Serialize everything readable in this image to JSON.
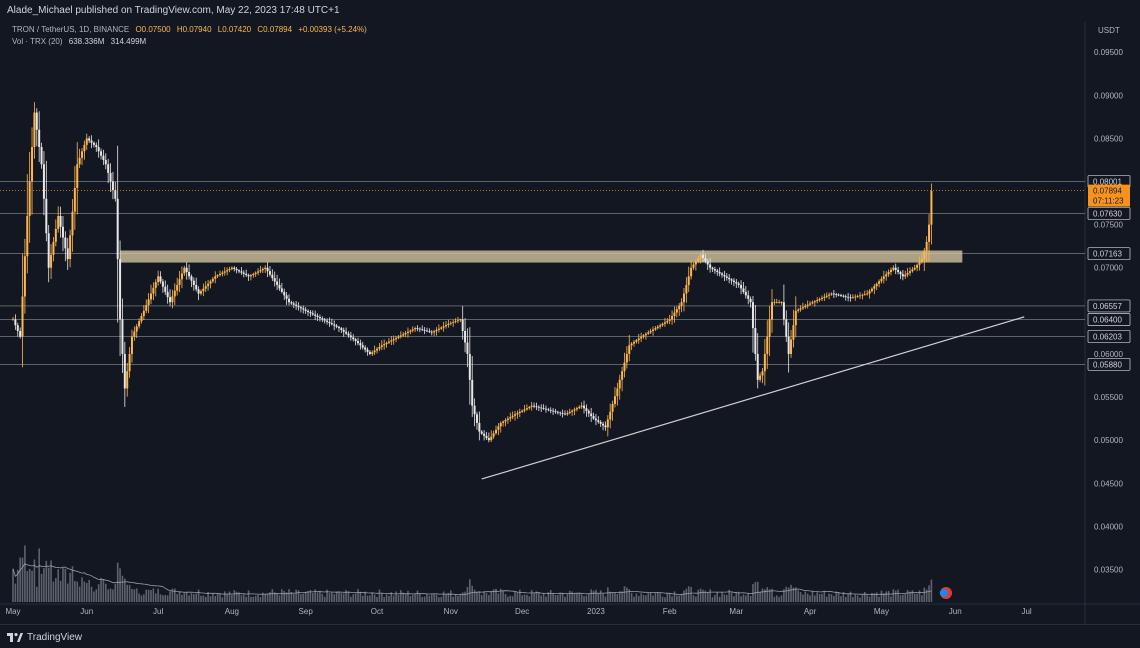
{
  "header": {
    "published": "Alade_Michael published on TradingView.com, May 22, 2023 17:48 UTC+1",
    "symbol": "TRON / TetherUS, 1D, BINANCE",
    "ohlc": [
      "O0.07500",
      "H0.07940",
      "L0.07420",
      "C0.07894",
      "+0.00393 (+5.24%)"
    ],
    "volume_label": "Vol · TRX (20)",
    "volume_values": [
      "638.336M",
      "314.499M"
    ]
  },
  "currency": "USDT",
  "footer": {
    "brand": "TradingView"
  },
  "colors": {
    "background": "#131722",
    "up": "#ffb74d",
    "down": "#e8e8e8",
    "zone": "#d7c8a0",
    "line": "#d0d0d0",
    "price_tag": "#f7931a"
  },
  "chart_data": {
    "type": "candlestick",
    "symbol": "TRON / TetherUS, 1D, BINANCE",
    "ylim": [
      0.031,
      0.0985
    ],
    "y_ticks": [
      "0.09500",
      "0.09000",
      "0.08500",
      "0.07500",
      "0.07000",
      "0.06000",
      "0.05500",
      "0.05000",
      "0.04500",
      "0.04000",
      "0.03500"
    ],
    "x_ticks": [
      "May",
      "Jun",
      "Jul",
      "Aug",
      "Sep",
      "Oct",
      "Nov",
      "Dec",
      "2023",
      "Feb",
      "Mar",
      "Apr",
      "May",
      "Jun",
      "Jul"
    ],
    "x_domain": [
      "2022-05-01",
      "2023-07-10"
    ],
    "price_levels": [
      "0.08001",
      "0.07630",
      "0.07163",
      "0.06557",
      "0.06400",
      "0.06203",
      "0.05880"
    ],
    "current_price": {
      "value": "0.07894",
      "countdown": "07:11:23"
    },
    "resistance_zone": {
      "low": 0.0706,
      "high": 0.072,
      "start": "2022-06-15",
      "end": "2023-06-04"
    },
    "trendline": {
      "start": [
        "2022-11-14",
        0.0455
      ],
      "end": [
        "2023-06-30",
        0.0643
      ]
    },
    "price_path": [
      [
        "2022-05-01",
        0.064
      ],
      [
        "2022-05-04",
        0.062
      ],
      [
        "2022-05-07",
        0.076
      ],
      [
        "2022-05-10",
        0.088
      ],
      [
        "2022-05-13",
        0.082
      ],
      [
        "2022-05-16",
        0.07
      ],
      [
        "2022-05-20",
        0.076
      ],
      [
        "2022-05-24",
        0.071
      ],
      [
        "2022-05-28",
        0.082
      ],
      [
        "2022-06-01",
        0.085
      ],
      [
        "2022-06-05",
        0.084
      ],
      [
        "2022-06-09",
        0.082
      ],
      [
        "2022-06-13",
        0.078
      ],
      [
        "2022-06-15",
        0.064
      ],
      [
        "2022-06-17",
        0.056
      ],
      [
        "2022-06-20",
        0.062
      ],
      [
        "2022-06-25",
        0.065
      ],
      [
        "2022-07-01",
        0.069
      ],
      [
        "2022-07-06",
        0.066
      ],
      [
        "2022-07-12",
        0.07
      ],
      [
        "2022-07-18",
        0.067
      ],
      [
        "2022-07-25",
        0.069
      ],
      [
        "2022-08-01",
        0.07
      ],
      [
        "2022-08-08",
        0.069
      ],
      [
        "2022-08-15",
        0.07
      ],
      [
        "2022-08-20",
        0.068
      ],
      [
        "2022-08-25",
        0.066
      ],
      [
        "2022-09-01",
        0.065
      ],
      [
        "2022-09-08",
        0.064
      ],
      [
        "2022-09-15",
        0.063
      ],
      [
        "2022-09-22",
        0.0615
      ],
      [
        "2022-09-28",
        0.06
      ],
      [
        "2022-10-03",
        0.061
      ],
      [
        "2022-10-10",
        0.062
      ],
      [
        "2022-10-17",
        0.063
      ],
      [
        "2022-10-24",
        0.0625
      ],
      [
        "2022-10-31",
        0.0635
      ],
      [
        "2022-11-05",
        0.064
      ],
      [
        "2022-11-08",
        0.06
      ],
      [
        "2022-11-10",
        0.054
      ],
      [
        "2022-11-13",
        0.051
      ],
      [
        "2022-11-17",
        0.05
      ],
      [
        "2022-11-22",
        0.052
      ],
      [
        "2022-11-28",
        0.053
      ],
      [
        "2022-12-05",
        0.054
      ],
      [
        "2022-12-12",
        0.0535
      ],
      [
        "2022-12-19",
        0.053
      ],
      [
        "2022-12-26",
        0.054
      ],
      [
        "2022-12-31",
        0.0525
      ],
      [
        "2023-01-05",
        0.0515
      ],
      [
        "2023-01-10",
        0.056
      ],
      [
        "2023-01-15",
        0.061
      ],
      [
        "2023-01-20",
        0.062
      ],
      [
        "2023-01-26",
        0.063
      ],
      [
        "2023-02-01",
        0.064
      ],
      [
        "2023-02-06",
        0.066
      ],
      [
        "2023-02-10",
        0.07
      ],
      [
        "2023-02-14",
        0.0715
      ],
      [
        "2023-02-18",
        0.07
      ],
      [
        "2023-02-24",
        0.069
      ],
      [
        "2023-03-02",
        0.068
      ],
      [
        "2023-03-07",
        0.066
      ],
      [
        "2023-03-10",
        0.057
      ],
      [
        "2023-03-12",
        0.058
      ],
      [
        "2023-03-16",
        0.066
      ],
      [
        "2023-03-20",
        0.066
      ],
      [
        "2023-03-23",
        0.06
      ],
      [
        "2023-03-26",
        0.065
      ],
      [
        "2023-04-02",
        0.066
      ],
      [
        "2023-04-10",
        0.067
      ],
      [
        "2023-04-18",
        0.0665
      ],
      [
        "2023-04-25",
        0.067
      ],
      [
        "2023-05-02",
        0.069
      ],
      [
        "2023-05-06",
        0.07
      ],
      [
        "2023-05-10",
        0.069
      ],
      [
        "2023-05-15",
        0.07
      ],
      [
        "2023-05-18",
        0.071
      ],
      [
        "2023-05-20",
        0.073
      ],
      [
        "2023-05-21",
        0.075
      ],
      [
        "2023-05-22",
        0.0789
      ]
    ],
    "volume": {
      "ma_period": 20,
      "last": "638.336M",
      "ma": "314.499M"
    }
  }
}
